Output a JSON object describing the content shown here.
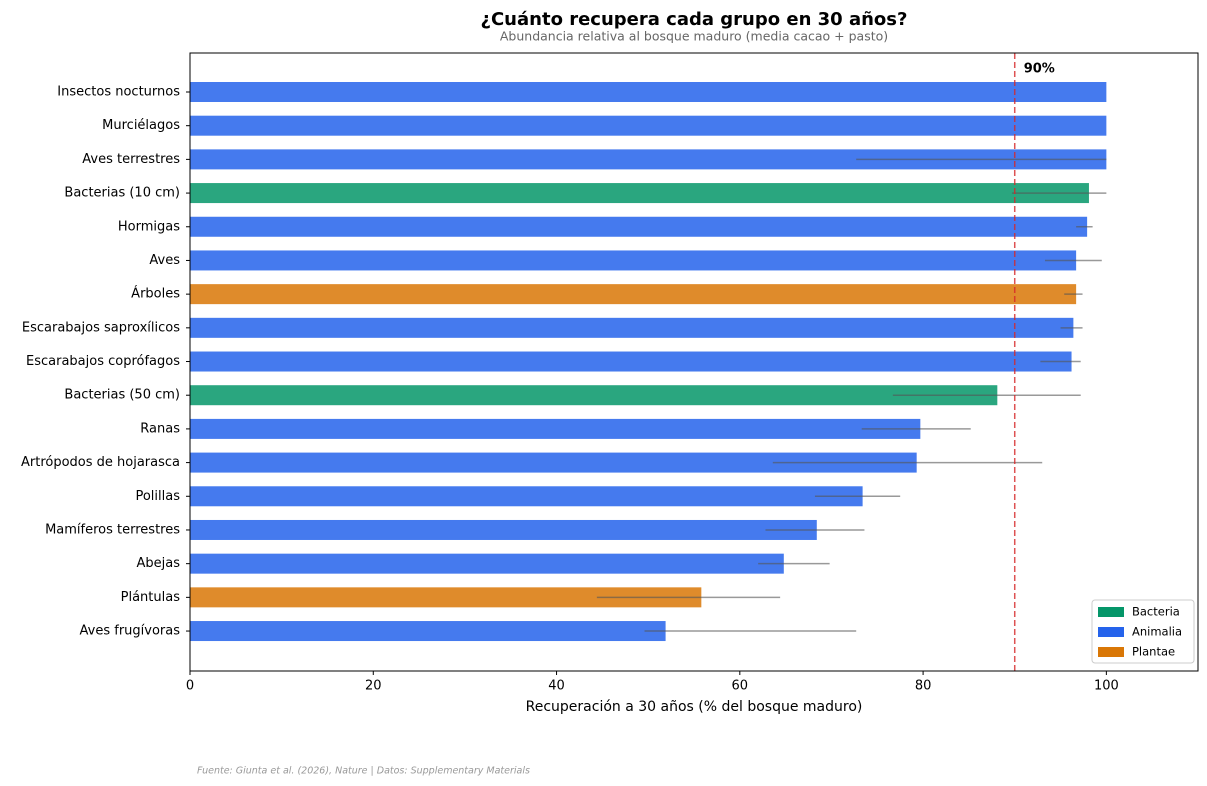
{
  "chart_data": {
    "type": "bar",
    "orientation": "horizontal",
    "title": "¿Cuánto recupera cada grupo en 30 años?",
    "subtitle": "Abundancia relativa al bosque maduro (media cacao + pasto)",
    "xlabel": "Recuperación a 30 años (% del bosque maduro)",
    "source": "Fuente: Giunta et al. (2026), Nature | Datos: Supplementary Materials",
    "categories": [
      "Insectos nocturnos",
      "Murciélagos",
      "Aves terrestres",
      "Bacterias (10 cm)",
      "Hormigas",
      "Aves",
      "Árboles",
      "Escarabajos saproxílicos",
      "Escarabajos coprófagos",
      "Bacterias (50 cm)",
      "Ranas",
      "Artrópodos de hojarasca",
      "Polillas",
      "Mamíferos terrestres",
      "Abejas",
      "Plántulas",
      "Aves frugívoras"
    ],
    "values": [
      100,
      100,
      100,
      98.1,
      97.9,
      96.7,
      96.7,
      96.4,
      96.2,
      88.1,
      79.7,
      79.3,
      73.4,
      68.4,
      64.8,
      55.8,
      51.9
    ],
    "err_low": [
      null,
      null,
      72.7,
      89.7,
      96.7,
      93.3,
      95.4,
      95.0,
      92.8,
      76.7,
      73.3,
      63.6,
      68.2,
      62.8,
      62.0,
      44.4,
      49.6
    ],
    "err_high": [
      null,
      null,
      100,
      100,
      98.5,
      99.5,
      97.4,
      97.4,
      97.2,
      97.2,
      85.2,
      93.0,
      77.5,
      73.6,
      69.8,
      64.4,
      72.7
    ],
    "groups": [
      1,
      1,
      1,
      0,
      1,
      1,
      2,
      1,
      1,
      0,
      1,
      1,
      1,
      1,
      1,
      2,
      1
    ],
    "legend": [
      {
        "name": "Bacteria",
        "color": "#059669"
      },
      {
        "name": "Animalia",
        "color": "#2563eb"
      },
      {
        "name": "Plantae",
        "color": "#d97706"
      }
    ],
    "legend_position": "lower right",
    "reference_line": {
      "value": 90,
      "label": "90%",
      "color": "#d62728"
    },
    "xlim": [
      0,
      110
    ],
    "xticks": [
      0,
      20,
      40,
      60,
      80,
      100
    ]
  }
}
